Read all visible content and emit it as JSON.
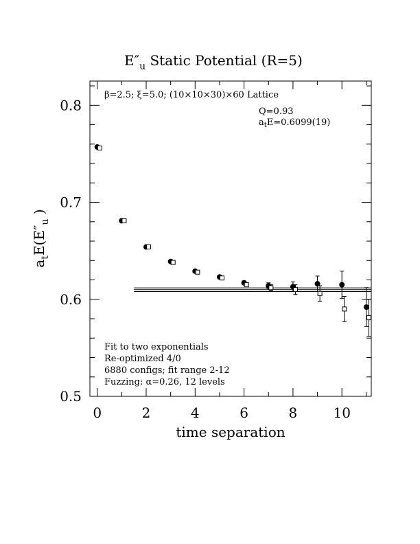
{
  "chart_data": {
    "type": "scatter",
    "title": "E″u  Static Potential (R=5)",
    "xlabel": "time separation",
    "ylabel": "aₜE(E″u )",
    "xlim": [
      -0.3,
      11.2
    ],
    "ylim": [
      0.5,
      0.825
    ],
    "x_ticks": [
      "0",
      "2",
      "4",
      "6",
      "8",
      "10"
    ],
    "y_ticks": [
      "0.5",
      "0.6",
      "0.7",
      "0.8"
    ],
    "grid": false,
    "annotations": {
      "lattice": "β=2.5; ξ=5.0; (10×10×30)×60 Lattice",
      "q_value": "Q=0.93",
      "energy": "aₜE=0.6099(19)",
      "fit_lines": [
        "Fit to two exponentials",
        "Re-optimized 4/0",
        "6880 configs; fit range 2-12",
        "Fuzzing: α=0.26, 12 levels"
      ]
    },
    "fit": {
      "value": 0.6099,
      "error": 0.0019,
      "x_range": [
        1.5,
        11.2
      ]
    },
    "series": [
      {
        "marker": "filled-circle",
        "x": [
          0,
          1,
          2,
          3,
          4,
          5,
          6,
          7,
          8,
          9,
          10,
          11
        ],
        "y": [
          0.757,
          0.681,
          0.654,
          0.639,
          0.629,
          0.623,
          0.617,
          0.614,
          0.613,
          0.616,
          0.615,
          0.592
        ],
        "err": [
          0.001,
          0.001,
          0.001,
          0.001,
          0.001,
          0.0015,
          0.002,
          0.003,
          0.005,
          0.008,
          0.014,
          0.02
        ]
      },
      {
        "marker": "open-square",
        "x": [
          0.1,
          1.1,
          2.1,
          3.1,
          4.1,
          5.1,
          6.1,
          7.1,
          8.1,
          9.1,
          10.1,
          11.1
        ],
        "y": [
          0.756,
          0.681,
          0.654,
          0.638,
          0.628,
          0.622,
          0.615,
          0.612,
          0.61,
          0.606,
          0.59,
          0.581
        ],
        "err": [
          0.001,
          0.001,
          0.001,
          0.001,
          0.0015,
          0.0015,
          0.002,
          0.003,
          0.005,
          0.008,
          0.013,
          0.019
        ]
      }
    ]
  }
}
